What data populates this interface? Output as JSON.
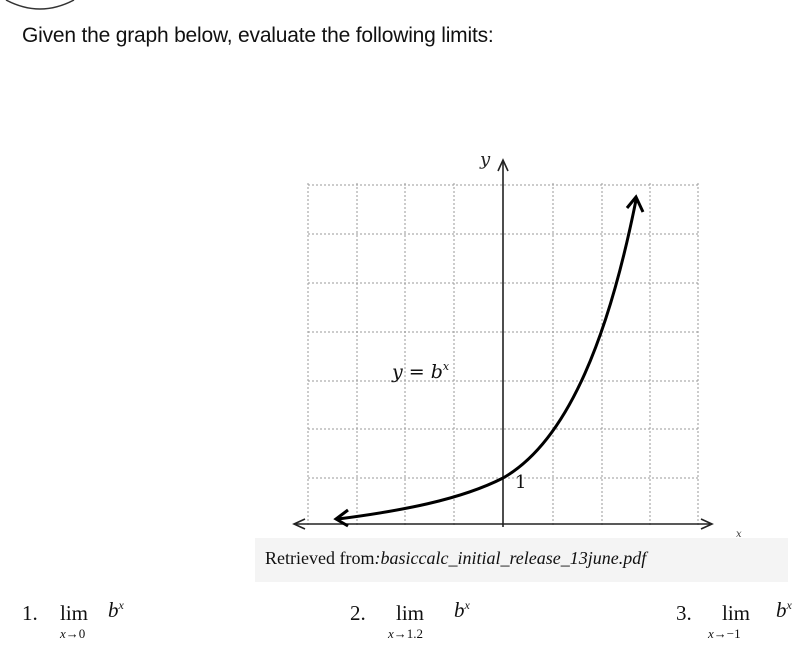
{
  "question": "Given the graph below, evaluate the following limits:",
  "graph": {
    "y_axis_label": "y",
    "x_axis_label": "x",
    "curve_label": "y = b",
    "curve_label_exp": "x",
    "intercept_label": "1"
  },
  "caption": {
    "prefix": "Retrieved from",
    "source": ":basiccalc_initial_release_13june.pdf"
  },
  "problems": [
    {
      "number": "1.",
      "lim": "lim",
      "sub_var": "x",
      "sub_target": "0",
      "base": "b",
      "exp": "x"
    },
    {
      "number": "2.",
      "lim": "lim",
      "sub_var": "x",
      "sub_target": "1.2",
      "base": "b",
      "exp": "x"
    },
    {
      "number": "3.",
      "lim": "lim",
      "sub_var": "x",
      "sub_target": "−1",
      "base": "b",
      "exp": "x"
    }
  ]
}
